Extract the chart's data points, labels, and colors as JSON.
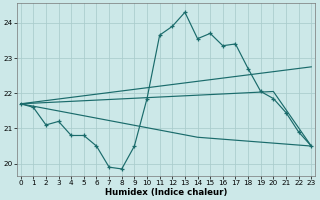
{
  "xlabel": "Humidex (Indice chaleur)",
  "xlim": [
    -0.3,
    23.3
  ],
  "ylim": [
    19.65,
    24.55
  ],
  "yticks": [
    20,
    21,
    22,
    23,
    24
  ],
  "xticks": [
    0,
    1,
    2,
    3,
    4,
    5,
    6,
    7,
    8,
    9,
    10,
    11,
    12,
    13,
    14,
    15,
    16,
    17,
    18,
    19,
    20,
    21,
    22,
    23
  ],
  "bg_color": "#cce8e8",
  "grid_color": "#aacccc",
  "line_color": "#1a6b6b",
  "main_line": {
    "x": [
      0,
      1,
      2,
      3,
      4,
      5,
      6,
      7,
      8,
      9,
      10,
      11,
      12,
      13,
      14,
      15,
      16,
      17,
      18,
      19,
      20,
      21,
      22,
      23
    ],
    "y": [
      21.7,
      21.6,
      21.1,
      21.2,
      20.8,
      20.8,
      20.5,
      19.9,
      19.85,
      20.5,
      21.85,
      23.65,
      23.9,
      24.3,
      23.55,
      23.7,
      23.35,
      23.4,
      22.7,
      22.05,
      21.85,
      21.45,
      20.9,
      20.5
    ]
  },
  "trend_line1": {
    "x": [
      0,
      23
    ],
    "y": [
      21.7,
      22.75
    ]
  },
  "trend_line2": {
    "x": [
      0,
      20,
      23
    ],
    "y": [
      21.7,
      22.05,
      20.5
    ]
  },
  "trend_line3": {
    "x": [
      0,
      14,
      23
    ],
    "y": [
      21.7,
      20.75,
      20.5
    ]
  }
}
